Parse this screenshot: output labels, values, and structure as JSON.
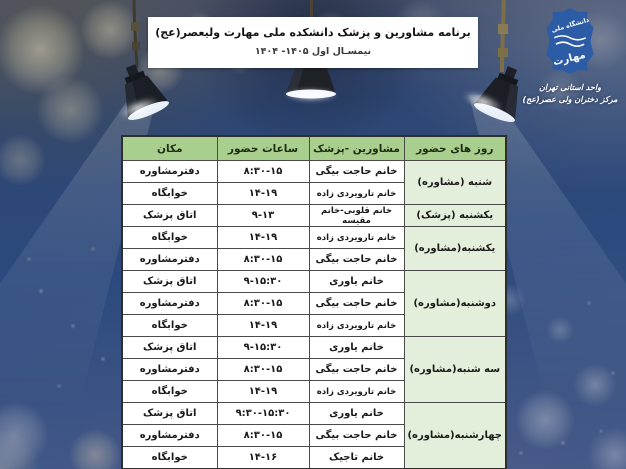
{
  "banner": {
    "title": "برنامه مشاورین و پزشک دانشکده ملی مهارت ولیعصر(عج)",
    "subtitle": "نیمسـال اول ۱۴۰۵- ۱۴۰۴"
  },
  "logo": {
    "emblem_top": "دانشگاه ملی",
    "emblem_bottom": "مهارت",
    "sub1": "واحد استانی تهران",
    "sub2": "مرکز دختران ولی عصر(عج)"
  },
  "table": {
    "headers": [
      "روز های حضور",
      "مشاورین -پزشک",
      "ساعات حضور",
      "مکان"
    ],
    "groups": [
      {
        "day": "شنبه (مشاوره)",
        "rows": [
          {
            "person": "خانم حاجت بیگی",
            "time": "۸:۳۰-۱۵",
            "place": "دفترمشاوره"
          },
          {
            "person": "خانم تارویردی زاده",
            "time": "۱۴-۱۹",
            "place": "خوابگاه"
          }
        ]
      },
      {
        "day": "یکشنبه (پزشک)",
        "rows": [
          {
            "person": "خانم قلوبی-خانم مقیسه",
            "time": "۹-۱۳",
            "place": "اتاق پزشک"
          }
        ]
      },
      {
        "day": "یکشنبه(مشاوره)",
        "rows": [
          {
            "person": "خانم تارویردی زاده",
            "time": "۱۴-۱۹",
            "place": "خوابگاه"
          },
          {
            "person": "خانم حاجت بیگی",
            "time": "۸:۳۰-۱۵",
            "place": "دفترمشاوره"
          }
        ]
      },
      {
        "day": "دوشنبه(مشاوره)",
        "rows": [
          {
            "person": "خانم یاوری",
            "time": "۹-۱۵:۳۰",
            "place": "اتاق پزشک"
          },
          {
            "person": "خانم حاجت بیگی",
            "time": "۸:۳۰-۱۵",
            "place": "دفترمشاوره"
          },
          {
            "person": "خانم تارویردی زاده",
            "time": "۱۴-۱۹",
            "place": "خوابگاه"
          }
        ]
      },
      {
        "day": "سه شنبه(مشاوره)",
        "rows": [
          {
            "person": "خانم یاوری",
            "time": "۹-۱۵:۳۰",
            "place": "اتاق پزشک"
          },
          {
            "person": "خانم حاجت بیگی",
            "time": "۸:۳۰-۱۵",
            "place": "دفترمشاوره"
          },
          {
            "person": "خانم تارویردی زاده",
            "time": "۱۴-۱۹",
            "place": "خوابگاه"
          }
        ]
      },
      {
        "day": "چهارشنبه(مشاوره)",
        "rows": [
          {
            "person": "خانم یاوری",
            "time": "۹:۳۰-۱۵:۳۰",
            "place": "اتاق پزشک"
          },
          {
            "person": "خانم حاجت بیگی",
            "time": "۸:۳۰-۱۵",
            "place": "دفترمشاوره"
          },
          {
            "person": "خانم تاجیک",
            "time": "۱۴-۱۶",
            "place": "خوابگاه"
          }
        ]
      }
    ]
  },
  "colors": {
    "header_green": "#a8cf8d",
    "day_green": "#e3efdb",
    "logo_blue": "#2d5ca6",
    "background_blue": "#2c4a7e"
  }
}
